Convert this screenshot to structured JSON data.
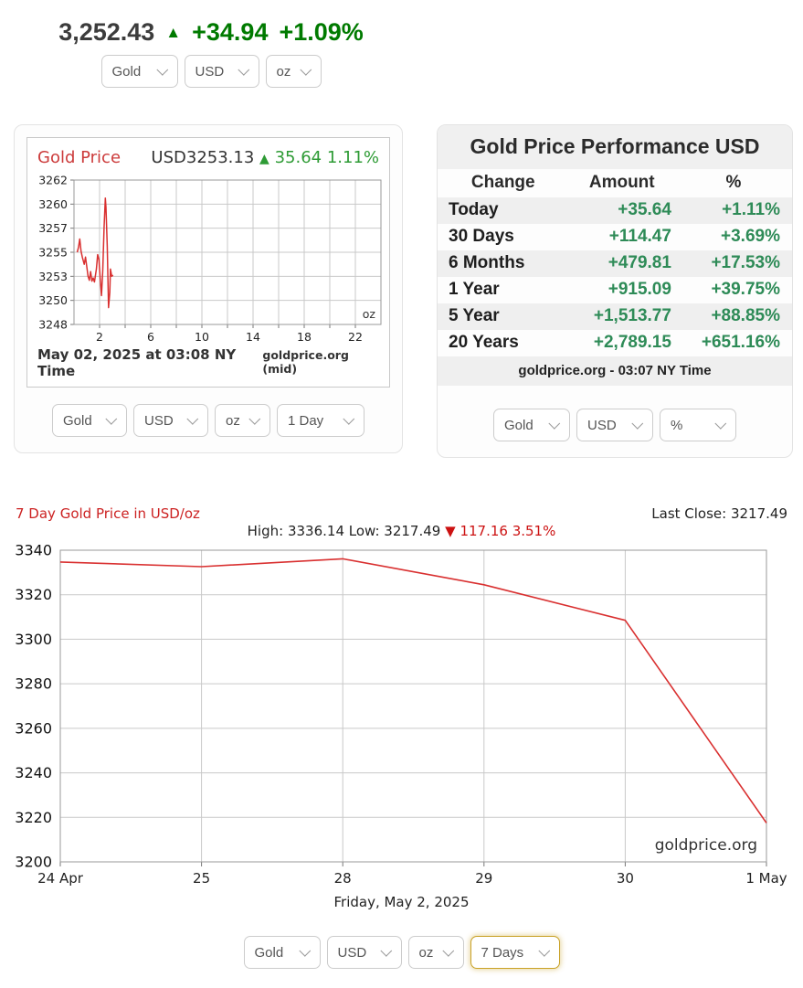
{
  "header": {
    "price": "3,252.43",
    "arrow": "▲",
    "change": "+34.94",
    "change_pct": "+1.09%",
    "selects": [
      {
        "value": "Gold"
      },
      {
        "value": "USD"
      },
      {
        "value": "oz"
      }
    ]
  },
  "intraday": {
    "title": "Gold Price",
    "quote_value": "USD3253.13",
    "quote_arrow": "▲",
    "quote_change": "35.64 1.11%",
    "timestamp": "May 02, 2025 at 03:08 NY Time",
    "source": "goldprice.org (mid)",
    "selects": [
      {
        "value": "Gold"
      },
      {
        "value": "USD"
      },
      {
        "value": "oz"
      },
      {
        "value": "1 Day"
      }
    ]
  },
  "performance": {
    "title": "Gold Price Performance USD",
    "columns": [
      "Change",
      "Amount",
      "%"
    ],
    "rows": [
      [
        "Today",
        "+35.64",
        "+1.11%"
      ],
      [
        "30 Days",
        "+114.47",
        "+3.69%"
      ],
      [
        "6 Months",
        "+479.81",
        "+17.53%"
      ],
      [
        "1 Year",
        "+915.09",
        "+39.75%"
      ],
      [
        "5 Year",
        "+1,513.77",
        "+88.85%"
      ],
      [
        "20 Years",
        "+2,789.15",
        "+651.16%"
      ]
    ],
    "footer": "goldprice.org - 03:07 NY Time",
    "selects": [
      {
        "value": "Gold"
      },
      {
        "value": "USD"
      },
      {
        "value": "%"
      }
    ]
  },
  "week": {
    "title": "7 Day Gold Price in USD/oz",
    "last_close": "Last Close: 3217.49",
    "high_low": "High: 3336.14 Low: 3217.49",
    "drop_arrow": "▼",
    "drop_text": "117.16 3.51%",
    "caption": "Friday, May 2, 2025",
    "selects": [
      {
        "value": "Gold"
      },
      {
        "value": "USD"
      },
      {
        "value": "oz"
      },
      {
        "value": "7 Days"
      }
    ]
  },
  "colors": {
    "line_red": "#d93030",
    "grid": "#c9c9c9",
    "border": "#999999",
    "tick": "#777777",
    "green_header": "#007a00",
    "green_table": "#2e8b57",
    "focus_gold": "#c9a227"
  },
  "chart_data": [
    {
      "type": "line",
      "title": "Gold Price (1 Day, intraday)",
      "unit": "oz",
      "quote": "USD3253.13 ▲ 35.64 1.11%",
      "timestamp": "May 02, 2025 at 03:08 NY Time",
      "source": "goldprice.org (mid)",
      "x_hours_range": [
        0,
        24
      ],
      "x_grid_step_hours": 2,
      "x_tick_labels": [
        2,
        6,
        10,
        14,
        18,
        22
      ],
      "yticks": [
        3262,
        3260,
        3257,
        3255,
        3253,
        3250,
        3248
      ],
      "series": [
        {
          "name": "Gold USD/oz",
          "points": [
            [
              0.25,
              3255.0
            ],
            [
              0.35,
              3255.4
            ],
            [
              0.45,
              3256.1
            ],
            [
              0.55,
              3255.1
            ],
            [
              0.65,
              3254.6
            ],
            [
              0.8,
              3254.0
            ],
            [
              0.9,
              3254.6
            ],
            [
              1.0,
              3253.8
            ],
            [
              1.1,
              3253.0
            ],
            [
              1.2,
              3252.5
            ],
            [
              1.3,
              3253.4
            ],
            [
              1.4,
              3252.4
            ],
            [
              1.5,
              3252.8
            ],
            [
              1.6,
              3252.3
            ],
            [
              1.75,
              3253.6
            ],
            [
              1.85,
              3254.8
            ],
            [
              1.95,
              3254.4
            ],
            [
              2.05,
              3252.7
            ],
            [
              2.15,
              3250.6
            ],
            [
              2.25,
              3253.5
            ],
            [
              2.35,
              3257.0
            ],
            [
              2.45,
              3260.5
            ],
            [
              2.5,
              3259.6
            ],
            [
              2.6,
              3255.5
            ],
            [
              2.7,
              3249.4
            ],
            [
              2.8,
              3251.0
            ],
            [
              2.85,
              3253.6
            ],
            [
              2.95,
              3253.0
            ],
            [
              3.05,
              3253.1
            ]
          ]
        }
      ]
    },
    {
      "type": "line",
      "title": "7 Day Gold Price in USD/oz",
      "categories": [
        "24 Apr",
        "25",
        "28",
        "29",
        "30",
        "1 May"
      ],
      "values": [
        3334.7,
        3332.6,
        3336.14,
        3324.5,
        3308.5,
        3217.49
      ],
      "yticks": [
        3340,
        3320,
        3300,
        3280,
        3260,
        3240,
        3220,
        3200
      ],
      "ylim": [
        3200,
        3340
      ],
      "high": 3336.14,
      "low": 3217.49,
      "change": -117.16,
      "change_pct": -3.51,
      "last_close": 3217.49,
      "watermark": "goldprice.org",
      "grid": true,
      "legend": false
    }
  ]
}
